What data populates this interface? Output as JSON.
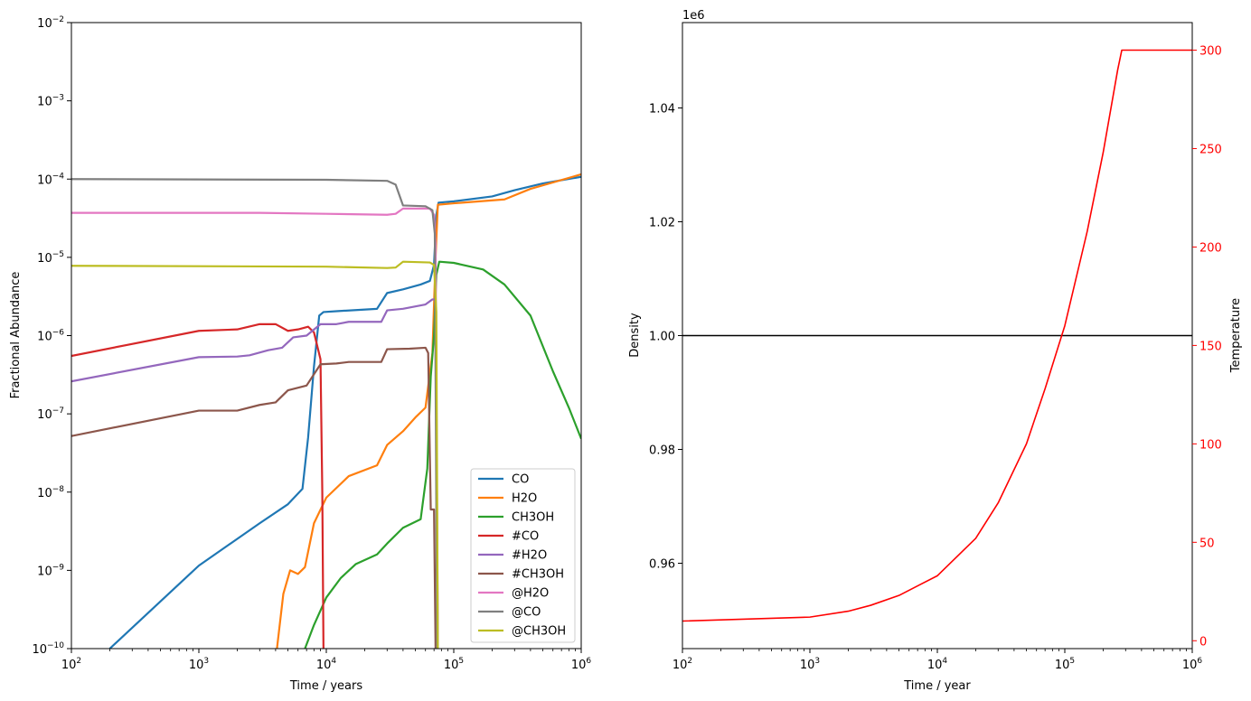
{
  "chart_data": [
    {
      "type": "line",
      "xlabel": "Time / years",
      "ylabel": "Fractional Abundance",
      "xscale": "log",
      "yscale": "log",
      "xlim": [
        100,
        1000000
      ],
      "ylim": [
        1e-10,
        0.01
      ],
      "x_ticks": [
        {
          "value": 100,
          "base": "10",
          "exp": "2"
        },
        {
          "value": 1000,
          "base": "10",
          "exp": "3"
        },
        {
          "value": 10000,
          "base": "10",
          "exp": "4"
        },
        {
          "value": 100000,
          "base": "10",
          "exp": "5"
        },
        {
          "value": 1000000,
          "base": "10",
          "exp": "6"
        }
      ],
      "y_ticks": [
        {
          "value": 1e-10,
          "base": "10",
          "exp": "−10"
        },
        {
          "value": 1e-09,
          "base": "10",
          "exp": "−9"
        },
        {
          "value": 1e-08,
          "base": "10",
          "exp": "−8"
        },
        {
          "value": 1e-07,
          "base": "10",
          "exp": "−7"
        },
        {
          "value": 1e-06,
          "base": "10",
          "exp": "−6"
        },
        {
          "value": 1e-05,
          "base": "10",
          "exp": "−5"
        },
        {
          "value": 0.0001,
          "base": "10",
          "exp": "−4"
        },
        {
          "value": 0.001,
          "base": "10",
          "exp": "−3"
        },
        {
          "value": 0.01,
          "base": "10",
          "exp": "−2"
        }
      ],
      "legend": {
        "placement": "lower-right"
      },
      "series": [
        {
          "name": "CO",
          "color": "#1f77b4",
          "points": [
            [
              200,
              1e-10
            ],
            [
              1000,
              1.15e-09
            ],
            [
              3000,
              4e-09
            ],
            [
              5000,
              7e-09
            ],
            [
              6500,
              1.1e-08
            ],
            [
              7200,
              5e-08
            ],
            [
              8000,
              4e-07
            ],
            [
              8800,
              1.8e-06
            ],
            [
              9500,
              2e-06
            ],
            [
              12000,
              2.05e-06
            ],
            [
              25000,
              2.2e-06
            ],
            [
              30000,
              3.5e-06
            ],
            [
              40000,
              3.9e-06
            ],
            [
              55000,
              4.5e-06
            ],
            [
              65000,
              5e-06
            ],
            [
              70000,
              8e-06
            ],
            [
              73000,
              3.5e-05
            ],
            [
              76000,
              5e-05
            ],
            [
              100000,
              5.2e-05
            ],
            [
              200000,
              6e-05
            ],
            [
              300000,
              7.2e-05
            ],
            [
              500000,
              8.8e-05
            ],
            [
              1000000,
              0.000107
            ]
          ]
        },
        {
          "name": "H2O",
          "color": "#ff7f0e",
          "points": [
            [
              4100,
              1e-10
            ],
            [
              4600,
              5e-10
            ],
            [
              5200,
              1e-09
            ],
            [
              6000,
              9e-10
            ],
            [
              6800,
              1.1e-09
            ],
            [
              8000,
              4e-09
            ],
            [
              10000,
              8.5e-09
            ],
            [
              15000,
              1.6e-08
            ],
            [
              25000,
              2.2e-08
            ],
            [
              30000,
              4e-08
            ],
            [
              40000,
              6e-08
            ],
            [
              50000,
              9e-08
            ],
            [
              60000,
              1.2e-07
            ],
            [
              68000,
              6e-07
            ],
            [
              72000,
              1e-05
            ],
            [
              75000,
              4.7e-05
            ],
            [
              100000,
              4.9e-05
            ],
            [
              250000,
              5.5e-05
            ],
            [
              400000,
              7.5e-05
            ],
            [
              1000000,
              0.000115
            ]
          ]
        },
        {
          "name": "CH3OH",
          "color": "#2ca02c",
          "points": [
            [
              6800,
              1e-10
            ],
            [
              8000,
              2e-10
            ],
            [
              10000,
              4.5e-10
            ],
            [
              13000,
              8e-10
            ],
            [
              17000,
              1.2e-09
            ],
            [
              25000,
              1.6e-09
            ],
            [
              30000,
              2.2e-09
            ],
            [
              40000,
              3.5e-09
            ],
            [
              55000,
              4.5e-09
            ],
            [
              62000,
              2e-08
            ],
            [
              66000,
              3e-07
            ],
            [
              70000,
              1e-06
            ],
            [
              73000,
              6e-06
            ],
            [
              77000,
              8.8e-06
            ],
            [
              100000,
              8.5e-06
            ],
            [
              170000,
              7e-06
            ],
            [
              250000,
              4.5e-06
            ],
            [
              400000,
              1.8e-06
            ],
            [
              600000,
              3.5e-07
            ],
            [
              800000,
              1.2e-07
            ],
            [
              1000000,
              4.8e-08
            ]
          ]
        },
        {
          "name": "#CO",
          "color": "#d62728",
          "points": [
            [
              100,
              5.5e-07
            ],
            [
              1000,
              1.15e-06
            ],
            [
              2000,
              1.2e-06
            ],
            [
              3000,
              1.4e-06
            ],
            [
              4000,
              1.4e-06
            ],
            [
              5000,
              1.15e-06
            ],
            [
              6000,
              1.2e-06
            ],
            [
              7200,
              1.3e-06
            ],
            [
              8000,
              1.1e-06
            ],
            [
              9000,
              5e-07
            ],
            [
              9300,
              1e-08
            ],
            [
              9500,
              1e-10
            ]
          ]
        },
        {
          "name": "#H2O",
          "color": "#9467bd",
          "points": [
            [
              100,
              2.6e-07
            ],
            [
              1000,
              5.3e-07
            ],
            [
              2000,
              5.4e-07
            ],
            [
              2500,
              5.6e-07
            ],
            [
              3500,
              6.5e-07
            ],
            [
              4500,
              7e-07
            ],
            [
              5500,
              9.5e-07
            ],
            [
              7000,
              1e-06
            ],
            [
              9000,
              1.4e-06
            ],
            [
              12000,
              1.4e-06
            ],
            [
              15000,
              1.5e-06
            ],
            [
              27000,
              1.5e-06
            ],
            [
              30000,
              2.1e-06
            ],
            [
              40000,
              2.2e-06
            ],
            [
              60000,
              2.5e-06
            ],
            [
              68000,
              2.9e-06
            ],
            [
              72000,
              2.9e-06
            ],
            [
              75000,
              1e-10
            ]
          ]
        },
        {
          "name": "#CH3OH",
          "color": "#8c564b",
          "points": [
            [
              100,
              5.2e-08
            ],
            [
              1000,
              1.1e-07
            ],
            [
              2000,
              1.1e-07
            ],
            [
              3000,
              1.3e-07
            ],
            [
              4000,
              1.4e-07
            ],
            [
              5000,
              2e-07
            ],
            [
              7000,
              2.3e-07
            ],
            [
              9000,
              4.3e-07
            ],
            [
              12000,
              4.4e-07
            ],
            [
              15000,
              4.6e-07
            ],
            [
              27000,
              4.6e-07
            ],
            [
              30000,
              6.7e-07
            ],
            [
              45000,
              6.8e-07
            ],
            [
              60000,
              7e-07
            ],
            [
              63000,
              6e-07
            ],
            [
              66000,
              6e-09
            ],
            [
              70000,
              6e-09
            ],
            [
              72000,
              1e-10
            ]
          ]
        },
        {
          "name": "@H2O",
          "color": "#e377c2",
          "points": [
            [
              100,
              3.7e-05
            ],
            [
              3000,
              3.7e-05
            ],
            [
              10000,
              3.6e-05
            ],
            [
              30000,
              3.5e-05
            ],
            [
              35000,
              3.6e-05
            ],
            [
              40000,
              4.2e-05
            ],
            [
              65000,
              4.2e-05
            ],
            [
              70000,
              3.5e-05
            ],
            [
              72000,
              1.5e-05
            ],
            [
              75000,
              1e-10
            ]
          ]
        },
        {
          "name": "@CO",
          "color": "#7f7f7f",
          "points": [
            [
              100,
              0.0001
            ],
            [
              10000,
              9.8e-05
            ],
            [
              30000,
              9.5e-05
            ],
            [
              35000,
              8.5e-05
            ],
            [
              40000,
              4.6e-05
            ],
            [
              60000,
              4.5e-05
            ],
            [
              68000,
              4e-05
            ],
            [
              71000,
              2e-05
            ],
            [
              74000,
              1e-10
            ]
          ]
        },
        {
          "name": "@CH3OH",
          "color": "#bcbd22",
          "points": [
            [
              100,
              7.8e-06
            ],
            [
              10000,
              7.6e-06
            ],
            [
              30000,
              7.3e-06
            ],
            [
              35000,
              7.4e-06
            ],
            [
              40000,
              8.8e-06
            ],
            [
              65000,
              8.6e-06
            ],
            [
              70000,
              8e-06
            ],
            [
              73000,
              2e-06
            ],
            [
              75000,
              1e-10
            ]
          ]
        }
      ]
    },
    {
      "type": "line",
      "xlabel": "Time / year",
      "ylabel": "Density",
      "y2label": "Temperature",
      "xscale": "log",
      "xlim": [
        100,
        1000000
      ],
      "ylim": [
        0.945,
        1.055
      ],
      "y_offset_label": "1e6",
      "y2lim": [
        -4,
        314
      ],
      "x_ticks": [
        {
          "value": 100,
          "base": "10",
          "exp": "2"
        },
        {
          "value": 1000,
          "base": "10",
          "exp": "3"
        },
        {
          "value": 10000,
          "base": "10",
          "exp": "4"
        },
        {
          "value": 100000,
          "base": "10",
          "exp": "5"
        },
        {
          "value": 1000000,
          "base": "10",
          "exp": "6"
        }
      ],
      "y_ticks": [
        {
          "value": 0.96,
          "label": "0.96"
        },
        {
          "value": 0.98,
          "label": "0.98"
        },
        {
          "value": 1.0,
          "label": "1.00"
        },
        {
          "value": 1.02,
          "label": "1.02"
        },
        {
          "value": 1.04,
          "label": "1.04"
        }
      ],
      "y2_ticks": [
        {
          "value": 0,
          "label": "0"
        },
        {
          "value": 50,
          "label": "50"
        },
        {
          "value": 100,
          "label": "100"
        },
        {
          "value": 150,
          "label": "150"
        },
        {
          "value": 200,
          "label": "200"
        },
        {
          "value": 250,
          "label": "250"
        },
        {
          "value": 300,
          "label": "300"
        }
      ],
      "series": [
        {
          "axis": "y",
          "color": "#000000",
          "points": [
            [
              100,
              1.0
            ],
            [
              1000000,
              1.0
            ]
          ]
        },
        {
          "axis": "y2",
          "color": "#ff0000",
          "points": [
            [
              100,
              10
            ],
            [
              1000,
              12
            ],
            [
              2000,
              15
            ],
            [
              3000,
              18
            ],
            [
              5000,
              23
            ],
            [
              10000,
              33
            ],
            [
              20000,
              52
            ],
            [
              30000,
              70
            ],
            [
              50000,
              100
            ],
            [
              70000,
              128
            ],
            [
              100000,
              160
            ],
            [
              150000,
              208
            ],
            [
              200000,
              248
            ],
            [
              260000,
              290
            ],
            [
              280000,
              300
            ],
            [
              1000000,
              300
            ]
          ]
        }
      ]
    }
  ]
}
